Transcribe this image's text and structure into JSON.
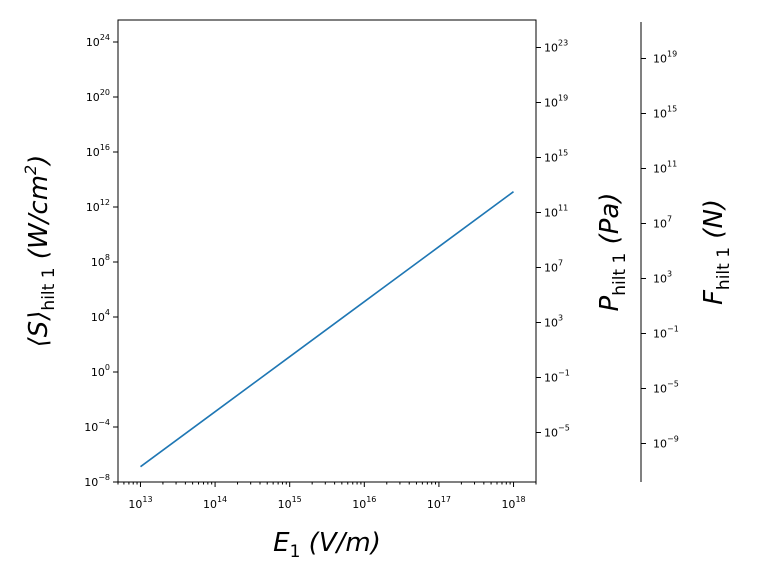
{
  "chart_data": {
    "type": "line",
    "x_scale": "log",
    "x_range": [
      5000000000000.0,
      2e+18
    ],
    "x_ticks": [
      {
        "base": "10",
        "exp": "13",
        "value": 10000000000000.0
      },
      {
        "base": "10",
        "exp": "14",
        "value": 100000000000000.0
      },
      {
        "base": "10",
        "exp": "15",
        "value": 1000000000000000.0
      },
      {
        "base": "10",
        "exp": "16",
        "value": 1e+16
      },
      {
        "base": "10",
        "exp": "17",
        "value": 1e+17
      },
      {
        "base": "10",
        "exp": "18",
        "value": 1e+18
      }
    ],
    "xlabel": {
      "main": "E",
      "sub": "1",
      "unit": " (V/m)"
    },
    "left_axis": {
      "scale": "log",
      "range_exp": [
        -8,
        25.6
      ],
      "label": {
        "pre": "⟨S⟩",
        "sub": "hilt 1",
        "unit": " (W/cm",
        "sup": "2",
        "close": ")"
      },
      "ticks": [
        {
          "base": "10",
          "exp": "24"
        },
        {
          "base": "10",
          "exp": "20"
        },
        {
          "base": "10",
          "exp": "16"
        },
        {
          "base": "10",
          "exp": "12"
        },
        {
          "base": "10",
          "exp": "8"
        },
        {
          "base": "10",
          "exp": "4"
        },
        {
          "base": "10",
          "exp": "0"
        },
        {
          "base": "10",
          "exp": "−4"
        },
        {
          "base": "10",
          "exp": "−8"
        }
      ]
    },
    "right_axis_1": {
      "scale": "log",
      "label": {
        "pre": "P",
        "sub": "hilt 1",
        "unit": " (Pa)"
      },
      "ticks": [
        {
          "base": "10",
          "exp": "23"
        },
        {
          "base": "10",
          "exp": "19"
        },
        {
          "base": "10",
          "exp": "15"
        },
        {
          "base": "10",
          "exp": "11"
        },
        {
          "base": "10",
          "exp": "7"
        },
        {
          "base": "10",
          "exp": "3"
        },
        {
          "base": "10",
          "exp": "−1"
        },
        {
          "base": "10",
          "exp": "−5"
        }
      ]
    },
    "right_axis_2": {
      "scale": "log",
      "label": {
        "pre": "F",
        "sub": "hilt 1",
        "unit": " (N)"
      },
      "ticks": [
        {
          "base": "10",
          "exp": "19"
        },
        {
          "base": "10",
          "exp": "15"
        },
        {
          "base": "10",
          "exp": "11"
        },
        {
          "base": "10",
          "exp": "7"
        },
        {
          "base": "10",
          "exp": "3"
        },
        {
          "base": "10",
          "exp": "−1"
        },
        {
          "base": "10",
          "exp": "−5"
        },
        {
          "base": "10",
          "exp": "−9"
        }
      ]
    },
    "series": [
      {
        "x": [
          10000000000000.0,
          100000000000000.0,
          1000000000000000.0,
          1e+16,
          1e+17,
          1e+18
        ],
        "y": [
          1.3e-07,
          0.0013,
          13,
          130000.0,
          1300000000.0,
          13000000000000.0
        ]
      }
    ],
    "line_color": "#1f77b4",
    "grid": false
  }
}
